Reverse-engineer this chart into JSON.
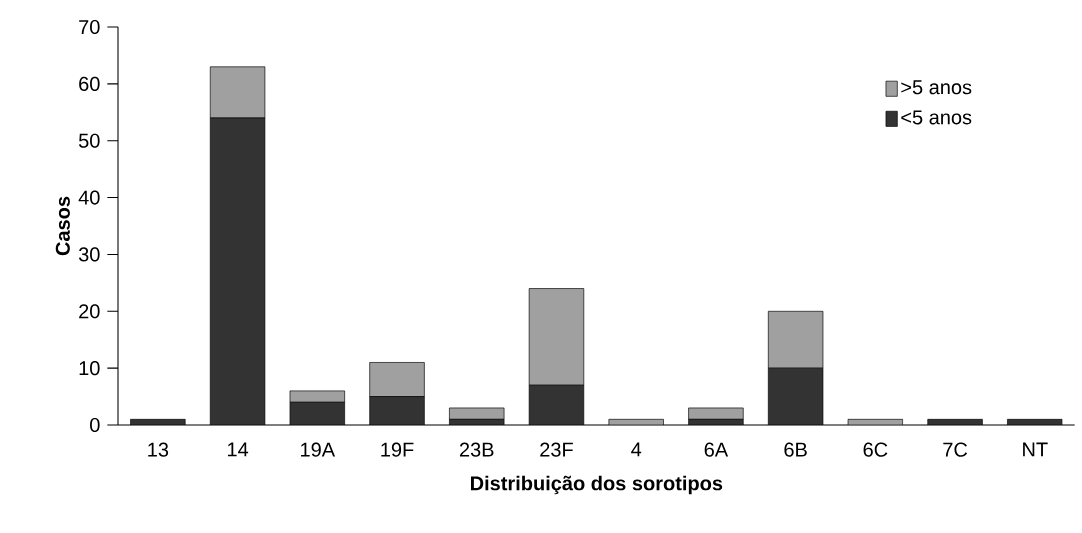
{
  "chart_data": {
    "type": "bar",
    "stacked": true,
    "xlabel": "Distribuição dos sorotipos",
    "ylabel": "Casos",
    "categories": [
      "13",
      "14",
      "19A",
      "19F",
      "23B",
      "23F",
      "4",
      "6A",
      "6B",
      "6C",
      "7C",
      "NT"
    ],
    "series": [
      {
        "name": "<5 anos",
        "color": "#333333",
        "values": [
          1,
          54,
          4,
          5,
          1,
          7,
          0,
          1,
          10,
          0,
          1,
          1
        ]
      },
      {
        "name": ">5 anos",
        "color": "#a0a0a0",
        "values": [
          0,
          9,
          2,
          6,
          2,
          17,
          1,
          2,
          10,
          1,
          0,
          0
        ]
      }
    ],
    "ylim": [
      0,
      70
    ],
    "yticks": [
      0,
      10,
      20,
      30,
      40,
      50,
      60,
      70
    ],
    "grid": false,
    "legend": "top right"
  }
}
